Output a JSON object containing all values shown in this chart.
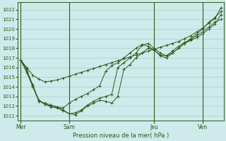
{
  "title": "Pression niveau de la mer( hPa )",
  "bg_color": "#ceeaea",
  "line_color": "#2d5a1b",
  "grid_color": "#a8cccc",
  "ylim": [
    1010.5,
    1022.8
  ],
  "yticks": [
    1011,
    1012,
    1013,
    1014,
    1015,
    1016,
    1017,
    1018,
    1019,
    1020,
    1021,
    1022
  ],
  "day_labels": [
    "Mer",
    "Sam",
    "Jeu",
    "Ven"
  ],
  "day_positions": [
    0,
    8,
    22,
    30
  ],
  "vline_positions": [
    8,
    22,
    30
  ],
  "n_points": 34,
  "xlim": [
    -0.5,
    33.5
  ],
  "lines": [
    [
      1016.8,
      1016.0,
      1015.2,
      1014.8,
      1014.5,
      1014.6,
      1014.7,
      1014.9,
      1015.1,
      1015.3,
      1015.5,
      1015.7,
      1015.9,
      1016.1,
      1016.3,
      1016.5,
      1016.7,
      1016.9,
      1017.1,
      1017.3,
      1017.5,
      1017.7,
      1017.9,
      1018.1,
      1018.3,
      1018.5,
      1018.7,
      1019.0,
      1019.3,
      1019.7,
      1020.1,
      1020.6,
      1021.1,
      1022.2
    ],
    [
      1016.8,
      1015.8,
      1014.1,
      1012.6,
      1012.2,
      1012.0,
      1011.9,
      1011.8,
      1012.3,
      1012.7,
      1013.0,
      1013.3,
      1013.7,
      1014.1,
      1015.6,
      1016.2,
      1016.5,
      1017.0,
      1017.5,
      1018.0,
      1018.4,
      1018.2,
      1017.8,
      1017.3,
      1017.2,
      1017.5,
      1018.0,
      1018.5,
      1019.0,
      1019.5,
      1020.0,
      1020.7,
      1021.2,
      1021.8
    ],
    [
      1016.8,
      1015.6,
      1014.2,
      1012.5,
      1012.2,
      1011.9,
      1011.8,
      1011.5,
      1011.2,
      1011.3,
      1011.6,
      1012.1,
      1012.5,
      1012.8,
      1013.0,
      1013.2,
      1016.0,
      1016.5,
      1017.0,
      1017.5,
      1018.3,
      1018.5,
      1018.0,
      1017.5,
      1017.2,
      1017.7,
      1018.2,
      1018.6,
      1018.9,
      1019.3,
      1019.7,
      1020.2,
      1020.7,
      1021.0
    ],
    [
      1016.8,
      1015.5,
      1014.0,
      1012.5,
      1012.3,
      1012.1,
      1011.9,
      1011.6,
      1011.2,
      1011.1,
      1011.5,
      1012.0,
      1012.3,
      1012.6,
      1012.5,
      1012.3,
      1013.0,
      1015.8,
      1016.3,
      1017.0,
      1017.5,
      1018.0,
      1017.8,
      1017.2,
      1017.0,
      1017.5,
      1018.0,
      1018.5,
      1018.8,
      1019.1,
      1019.5,
      1020.0,
      1020.5,
      1021.5
    ]
  ]
}
